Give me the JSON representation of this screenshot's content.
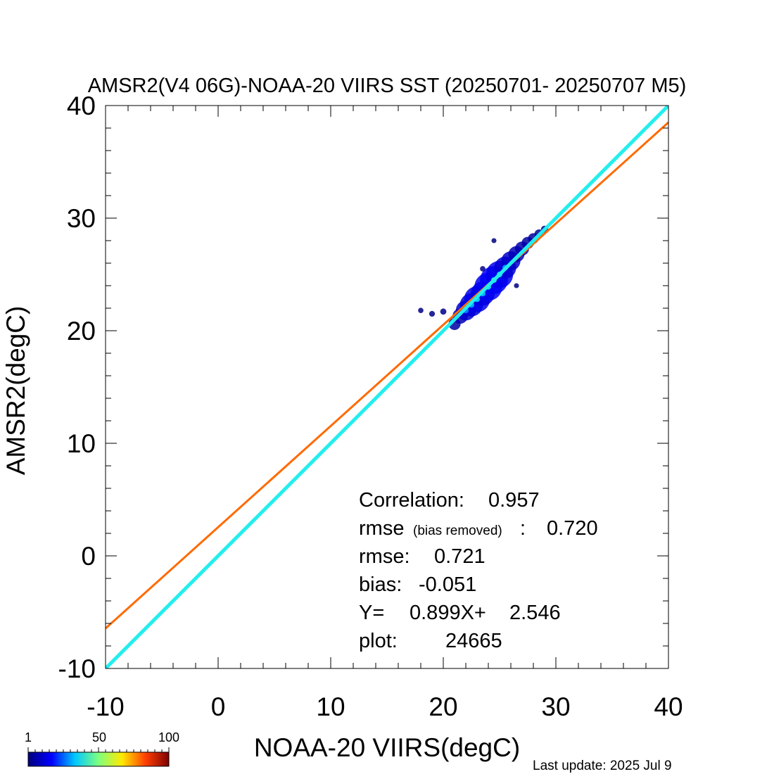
{
  "chart_data": {
    "type": "scatter",
    "title": "AMSR2(V4 06G)-NOAA-20 VIIRS SST (20250701- 20250707 M5)",
    "xlabel": "NOAA-20 VIIRS(degC)",
    "ylabel": "AMSR2(degC)",
    "xlim": [
      -10,
      40
    ],
    "ylim": [
      -10,
      40
    ],
    "x_ticks": [
      -10,
      0,
      10,
      20,
      30,
      40
    ],
    "y_ticks": [
      -10,
      0,
      10,
      20,
      30,
      40
    ],
    "x_tick_labels": [
      "-10",
      "0",
      "10",
      "20",
      "30",
      "40"
    ],
    "y_tick_labels": [
      "-10",
      "0",
      "10",
      "20",
      "30",
      "40"
    ],
    "grid": false,
    "regression_line": {
      "slope": 0.899,
      "intercept": 2.546,
      "color": "#ff6a00"
    },
    "identity_line": {
      "slope": 1,
      "intercept": 0,
      "color": "#22eeee"
    },
    "density_cluster": [
      {
        "x": 21.0,
        "y": 20.6,
        "density": 20
      },
      {
        "x": 21.5,
        "y": 21.3,
        "density": 28
      },
      {
        "x": 22.0,
        "y": 21.8,
        "density": 40
      },
      {
        "x": 22.5,
        "y": 22.3,
        "density": 48
      },
      {
        "x": 23.0,
        "y": 22.8,
        "density": 55
      },
      {
        "x": 23.5,
        "y": 23.3,
        "density": 50
      },
      {
        "x": 24.0,
        "y": 23.9,
        "density": 60
      },
      {
        "x": 24.5,
        "y": 24.5,
        "density": 62
      },
      {
        "x": 25.0,
        "y": 25.0,
        "density": 58
      },
      {
        "x": 25.5,
        "y": 25.6,
        "density": 45
      },
      {
        "x": 26.0,
        "y": 26.2,
        "density": 38
      },
      {
        "x": 26.5,
        "y": 26.8,
        "density": 30
      },
      {
        "x": 27.0,
        "y": 27.3,
        "density": 25
      },
      {
        "x": 27.5,
        "y": 27.8,
        "density": 20
      },
      {
        "x": 28.0,
        "y": 28.2,
        "density": 16
      },
      {
        "x": 28.5,
        "y": 28.6,
        "density": 12
      },
      {
        "x": 29.0,
        "y": 29.0,
        "density": 8
      },
      {
        "x": 18.0,
        "y": 21.8,
        "density": 3
      },
      {
        "x": 19.0,
        "y": 21.5,
        "density": 4
      },
      {
        "x": 20.0,
        "y": 21.7,
        "density": 5
      },
      {
        "x": 23.5,
        "y": 25.5,
        "density": 3
      },
      {
        "x": 24.5,
        "y": 28.0,
        "density": 2
      },
      {
        "x": 26.5,
        "y": 24.0,
        "density": 2
      }
    ],
    "stats": {
      "correlation_label": "Correlation:",
      "correlation": "0.957",
      "rmse_br_label": "rmse",
      "rmse_br_note": "(bias removed)",
      "rmse_br_sep": ":",
      "rmse_br": "0.720",
      "rmse_label": "rmse:",
      "rmse": "0.721",
      "bias_label": "bias:",
      "bias": "-0.051",
      "fit_prefix": "Y=",
      "fit_slope": "0.899X+",
      "fit_intercept": "2.546",
      "plot_label": "plot:",
      "plot_count": "24665"
    },
    "colorbar": {
      "labels": [
        "1",
        "50",
        "100"
      ],
      "min": 1,
      "max": 100,
      "colors": [
        "#00007f",
        "#0000ff",
        "#00c8ff",
        "#7fff7f",
        "#ffea00",
        "#ff4000",
        "#7f0000"
      ]
    },
    "footer": "Last update: 2025 Jul  9"
  }
}
